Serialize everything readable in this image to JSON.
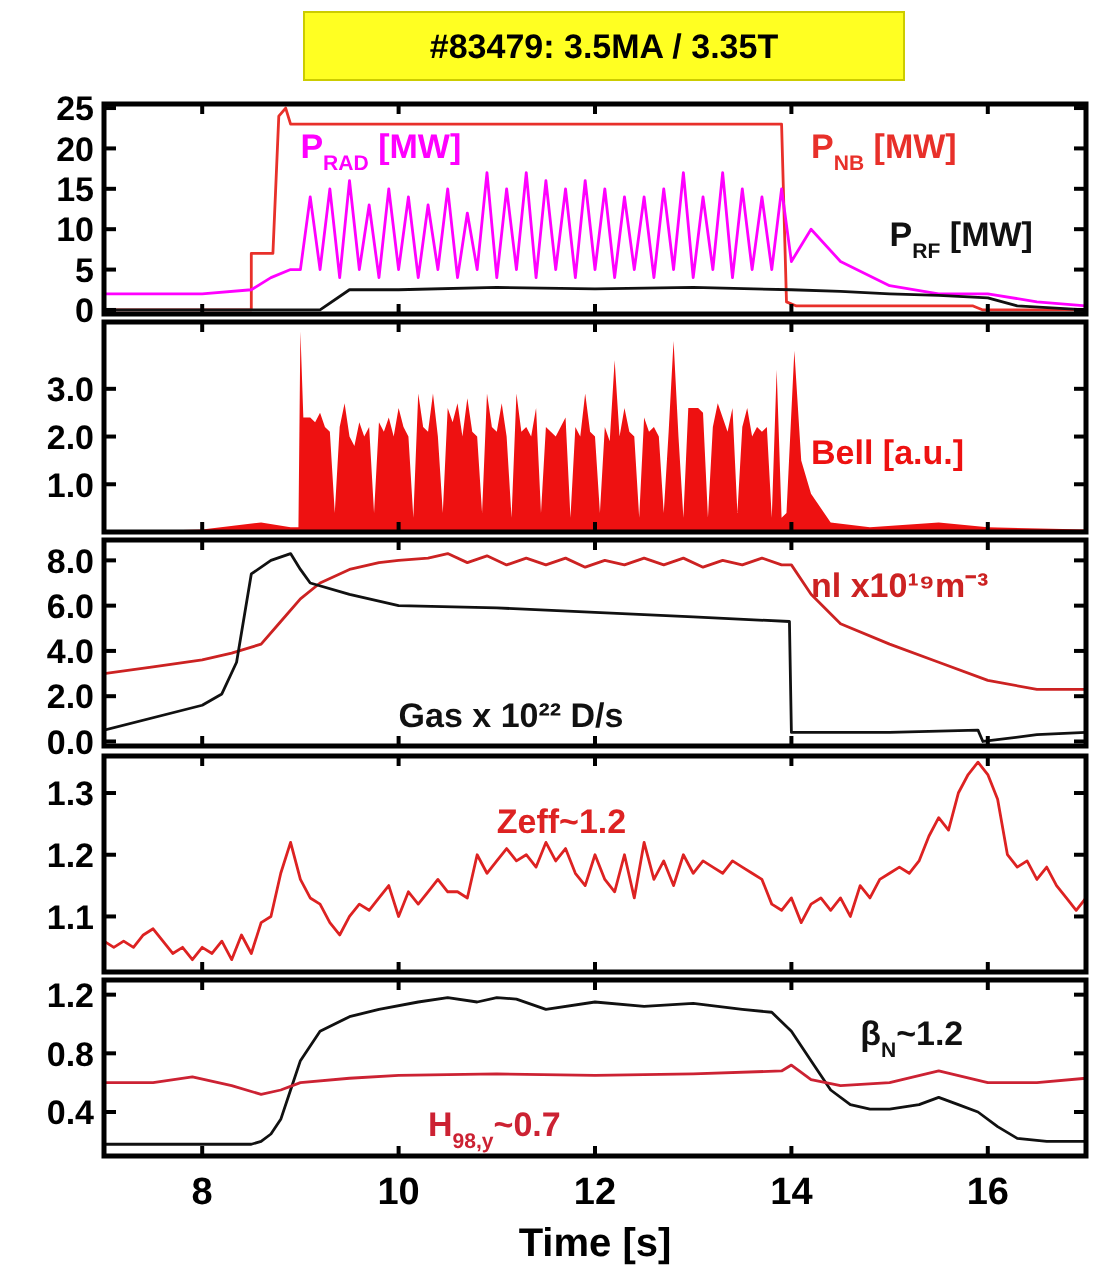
{
  "chart_data": [
    {
      "type": "line",
      "title": "#83479: 3.5MA / 3.35T",
      "xlim": [
        7,
        17
      ],
      "xticks": [
        8,
        10,
        12,
        14,
        16
      ],
      "ylim": [
        -0.5,
        25.5
      ],
      "yticks": [
        0,
        5,
        10,
        15,
        20,
        25
      ],
      "tick_labels": "y",
      "series": [
        {
          "name": "P$_{NB}$ [MW]",
          "color": "#e8302a",
          "x": [
            7,
            8.5,
            8.5,
            8.72,
            8.78,
            8.85,
            8.9,
            13.9,
            13.95,
            14.05,
            15.85,
            15.95,
            17
          ],
          "values": [
            0,
            0,
            7,
            7,
            24,
            25,
            23,
            23,
            1,
            0.5,
            0.5,
            0,
            0
          ]
        },
        {
          "name": "P$_{RAD}$ [MW]",
          "color": "#ff00ff",
          "x": [
            7,
            7.5,
            8,
            8.5,
            8.7,
            8.9,
            9.0,
            9.1,
            9.2,
            9.3,
            9.4,
            9.5,
            9.6,
            9.7,
            9.8,
            9.9,
            10.0,
            10.1,
            10.2,
            10.3,
            10.4,
            10.5,
            10.6,
            10.7,
            10.8,
            10.9,
            11.0,
            11.1,
            11.2,
            11.3,
            11.4,
            11.5,
            11.6,
            11.7,
            11.8,
            11.9,
            12.0,
            12.1,
            12.2,
            12.3,
            12.4,
            12.5,
            12.6,
            12.7,
            12.8,
            12.9,
            13.0,
            13.1,
            13.2,
            13.3,
            13.4,
            13.5,
            13.6,
            13.7,
            13.8,
            13.9,
            14.0,
            14.2,
            14.5,
            15,
            15.5,
            16,
            16.5,
            17
          ],
          "values": [
            2,
            2,
            2,
            2.5,
            4,
            5,
            5,
            14,
            5,
            15,
            4,
            16,
            5,
            13,
            4,
            15,
            5,
            14,
            4,
            13,
            5,
            15,
            4,
            12,
            5,
            17,
            4,
            15,
            5,
            17,
            4,
            16,
            5,
            15,
            4,
            16,
            5,
            15,
            4,
            14,
            5,
            14,
            4,
            15,
            5,
            17,
            4,
            14,
            5,
            17,
            4,
            15,
            5,
            14,
            5,
            15,
            6,
            10,
            6,
            3,
            2,
            2,
            1,
            0.5
          ]
        },
        {
          "name": "P$_{RF}$ [MW]",
          "color": "#111111",
          "x": [
            7,
            9.2,
            9.5,
            10,
            11,
            12,
            13,
            14,
            14.5,
            15,
            15.5,
            16,
            16.3,
            17
          ],
          "values": [
            0,
            0,
            2.5,
            2.5,
            2.8,
            2.6,
            2.8,
            2.5,
            2.3,
            2,
            1.8,
            1.5,
            0.5,
            0
          ]
        }
      ]
    },
    {
      "type": "area",
      "xlim": [
        7,
        17
      ],
      "xticks": [
        8,
        10,
        12,
        14,
        16
      ],
      "ylim": [
        0,
        4.4
      ],
      "yticks": [
        {
          "value": 1,
          "label": "1.0"
        },
        {
          "value": 2,
          "label": "2.0"
        },
        {
          "value": 3,
          "label": "3.0"
        }
      ],
      "tick_labels": "y",
      "series": [
        {
          "name": "Bell [a.u.]",
          "color": "#ee1111",
          "x": [
            7,
            8,
            8.6,
            8.9,
            8.98,
            9.0,
            9.03,
            9.1,
            9.15,
            9.2,
            9.25,
            9.3,
            9.35,
            9.4,
            9.45,
            9.5,
            9.55,
            9.6,
            9.65,
            9.7,
            9.75,
            9.8,
            9.85,
            9.9,
            9.95,
            10.0,
            10.05,
            10.1,
            10.15,
            10.2,
            10.25,
            10.3,
            10.35,
            10.4,
            10.45,
            10.5,
            10.55,
            10.6,
            10.65,
            10.7,
            10.75,
            10.8,
            10.85,
            10.9,
            10.95,
            11.0,
            11.05,
            11.1,
            11.15,
            11.2,
            11.25,
            11.3,
            11.35,
            11.4,
            11.45,
            11.5,
            11.55,
            11.6,
            11.65,
            11.7,
            11.75,
            11.8,
            11.85,
            11.9,
            11.95,
            12.0,
            12.05,
            12.1,
            12.15,
            12.2,
            12.25,
            12.3,
            12.35,
            12.4,
            12.45,
            12.5,
            12.55,
            12.6,
            12.65,
            12.7,
            12.75,
            12.8,
            12.85,
            12.9,
            12.95,
            13.0,
            13.05,
            13.1,
            13.15,
            13.2,
            13.25,
            13.3,
            13.35,
            13.4,
            13.45,
            13.5,
            13.55,
            13.6,
            13.65,
            13.7,
            13.75,
            13.8,
            13.85,
            13.9,
            13.95,
            14.03,
            14.1,
            14.2,
            14.4,
            14.8,
            15.5,
            16,
            17
          ],
          "values": [
            0,
            0.05,
            0.2,
            0.1,
            0.1,
            4.2,
            2.4,
            2.4,
            2.3,
            2.5,
            2.2,
            2.1,
            0.4,
            2.2,
            2.7,
            2.0,
            1.8,
            2.3,
            2.0,
            2.2,
            0.4,
            2.3,
            2.1,
            2.4,
            2.0,
            2.6,
            2.2,
            2.0,
            0.3,
            2.9,
            2.2,
            2.1,
            2.9,
            2.0,
            0.4,
            2.6,
            2.3,
            2.7,
            2.0,
            2.8,
            2.1,
            2.0,
            0.4,
            2.9,
            2.2,
            2.1,
            2.7,
            2.0,
            0.3,
            2.9,
            2.1,
            2.2,
            2.0,
            2.6,
            0.4,
            2.2,
            2.1,
            2.0,
            2.2,
            2.4,
            0.3,
            2.2,
            2.0,
            2.9,
            2.1,
            2.0,
            0.4,
            2.2,
            1.9,
            3.6,
            2.0,
            2.6,
            2.1,
            2.0,
            0.3,
            2.4,
            2.1,
            2.2,
            2.0,
            0.4,
            2.1,
            4.0,
            2.0,
            0.3,
            2.6,
            2.6,
            2.6,
            2.5,
            0.3,
            2.2,
            2.7,
            2.4,
            2.1,
            2.6,
            0.4,
            2.2,
            2.6,
            2.0,
            2.2,
            2.1,
            2.2,
            0.3,
            3.4,
            0.3,
            0.4,
            3.8,
            1.5,
            0.8,
            0.2,
            0.1,
            0.2,
            0.1,
            0.05
          ]
        }
      ]
    },
    {
      "type": "line",
      "xlim": [
        7,
        17
      ],
      "xticks": [
        8,
        10,
        12,
        14,
        16
      ],
      "ylim": [
        -0.2,
        8.9
      ],
      "yticks": [
        {
          "value": 0,
          "label": "0.0"
        },
        {
          "value": 2,
          "label": "2.0"
        },
        {
          "value": 4,
          "label": "4.0"
        },
        {
          "value": 6,
          "label": "6.0"
        },
        {
          "value": 8,
          "label": "8.0"
        }
      ],
      "tick_labels": "y",
      "series": [
        {
          "name": "nl x10¹⁹m⁻³",
          "color": "#cc2222",
          "x": [
            7,
            7.5,
            8,
            8.3,
            8.6,
            8.8,
            9.0,
            9.2,
            9.5,
            9.8,
            10.0,
            10.3,
            10.5,
            10.7,
            10.9,
            11.1,
            11.3,
            11.5,
            11.7,
            11.9,
            12.1,
            12.3,
            12.5,
            12.7,
            12.9,
            13.1,
            13.3,
            13.5,
            13.7,
            13.9,
            14.0,
            14.2,
            14.5,
            15,
            15.5,
            16,
            16.5,
            17
          ],
          "values": [
            3.0,
            3.3,
            3.6,
            3.9,
            4.3,
            5.3,
            6.3,
            7.0,
            7.6,
            7.9,
            8.0,
            8.1,
            8.3,
            7.9,
            8.2,
            7.8,
            8.1,
            7.8,
            8.1,
            7.7,
            8.0,
            7.8,
            8.1,
            7.8,
            8.1,
            7.7,
            8.0,
            7.8,
            8.1,
            7.8,
            7.8,
            6.5,
            5.2,
            4.3,
            3.5,
            2.7,
            2.3,
            2.3
          ]
        },
        {
          "name": "Gas x 10²² D/s",
          "color": "#111111",
          "x": [
            7,
            8,
            8.2,
            8.35,
            8.5,
            8.7,
            8.9,
            9.0,
            9.1,
            9.5,
            10,
            11,
            12,
            13,
            13.98,
            14.0,
            15,
            15.9,
            15.95,
            16.5,
            17
          ],
          "values": [
            0.5,
            1.6,
            2.1,
            3.5,
            7.4,
            8.0,
            8.3,
            7.6,
            7.0,
            6.5,
            6.0,
            5.9,
            5.7,
            5.5,
            5.3,
            0.4,
            0.4,
            0.5,
            0,
            0.3,
            0.4
          ]
        }
      ]
    },
    {
      "type": "line",
      "xlim": [
        7,
        17
      ],
      "xticks": [
        8,
        10,
        12,
        14,
        16
      ],
      "ylim": [
        1.01,
        1.36
      ],
      "yticks": [
        1.1,
        1.2,
        1.3
      ],
      "tick_labels": "y",
      "series": [
        {
          "name": "Zeff~1.2",
          "color": "#dd2222",
          "x": [
            7.0,
            7.1,
            7.2,
            7.3,
            7.4,
            7.5,
            7.6,
            7.7,
            7.8,
            7.9,
            8.0,
            8.1,
            8.2,
            8.3,
            8.4,
            8.5,
            8.6,
            8.7,
            8.8,
            8.9,
            9.0,
            9.1,
            9.2,
            9.3,
            9.4,
            9.5,
            9.6,
            9.7,
            9.8,
            9.9,
            10.0,
            10.1,
            10.2,
            10.3,
            10.4,
            10.5,
            10.6,
            10.7,
            10.8,
            10.9,
            11.0,
            11.1,
            11.2,
            11.3,
            11.4,
            11.5,
            11.6,
            11.7,
            11.8,
            11.9,
            12.0,
            12.1,
            12.2,
            12.3,
            12.4,
            12.5,
            12.6,
            12.7,
            12.8,
            12.9,
            13.0,
            13.1,
            13.2,
            13.3,
            13.4,
            13.5,
            13.6,
            13.7,
            13.8,
            13.9,
            14.0,
            14.1,
            14.2,
            14.3,
            14.4,
            14.5,
            14.6,
            14.7,
            14.8,
            14.9,
            15.0,
            15.1,
            15.2,
            15.3,
            15.4,
            15.5,
            15.6,
            15.7,
            15.8,
            15.9,
            16.0,
            16.1,
            16.2,
            16.3,
            16.4,
            16.5,
            16.6,
            16.7,
            16.8,
            16.9,
            17.0
          ],
          "values": [
            1.06,
            1.05,
            1.06,
            1.05,
            1.07,
            1.08,
            1.06,
            1.04,
            1.05,
            1.03,
            1.05,
            1.04,
            1.06,
            1.03,
            1.07,
            1.04,
            1.09,
            1.1,
            1.17,
            1.22,
            1.16,
            1.13,
            1.12,
            1.09,
            1.07,
            1.1,
            1.12,
            1.11,
            1.13,
            1.15,
            1.1,
            1.14,
            1.12,
            1.14,
            1.16,
            1.14,
            1.14,
            1.13,
            1.2,
            1.17,
            1.19,
            1.21,
            1.19,
            1.2,
            1.18,
            1.22,
            1.19,
            1.21,
            1.17,
            1.15,
            1.2,
            1.16,
            1.14,
            1.2,
            1.13,
            1.22,
            1.16,
            1.19,
            1.15,
            1.2,
            1.17,
            1.19,
            1.18,
            1.17,
            1.19,
            1.18,
            1.17,
            1.16,
            1.12,
            1.11,
            1.13,
            1.09,
            1.12,
            1.13,
            1.11,
            1.13,
            1.1,
            1.15,
            1.13,
            1.16,
            1.17,
            1.18,
            1.17,
            1.19,
            1.23,
            1.26,
            1.24,
            1.3,
            1.33,
            1.35,
            1.33,
            1.29,
            1.2,
            1.18,
            1.19,
            1.16,
            1.18,
            1.15,
            1.13,
            1.11,
            1.13
          ]
        }
      ]
    },
    {
      "type": "line",
      "xlabel": "Time [s]",
      "xlim": [
        7,
        17
      ],
      "xticks": [
        8,
        10,
        12,
        14,
        16
      ],
      "ylim": [
        0.1,
        1.3
      ],
      "yticks": [
        0.4,
        0.8,
        1.2
      ],
      "series": [
        {
          "name": "β$_{N}$~1.2",
          "color": "#111111",
          "x": [
            7,
            8,
            8.5,
            8.6,
            8.7,
            8.8,
            8.9,
            9.0,
            9.2,
            9.5,
            9.8,
            10.2,
            10.5,
            10.8,
            11,
            11.2,
            11.5,
            12,
            12.5,
            13,
            13.5,
            13.8,
            14.0,
            14.2,
            14.4,
            14.6,
            14.8,
            15.0,
            15.3,
            15.5,
            15.7,
            15.9,
            16.1,
            16.3,
            16.6,
            17
          ],
          "values": [
            0.18,
            0.18,
            0.18,
            0.2,
            0.25,
            0.35,
            0.55,
            0.75,
            0.95,
            1.05,
            1.1,
            1.15,
            1.18,
            1.15,
            1.18,
            1.17,
            1.1,
            1.15,
            1.12,
            1.14,
            1.1,
            1.08,
            0.95,
            0.75,
            0.55,
            0.45,
            0.42,
            0.42,
            0.45,
            0.5,
            0.45,
            0.4,
            0.3,
            0.22,
            0.2,
            0.2
          ]
        },
        {
          "name": "H$_{98,y}$~0.7",
          "color": "#cc2233",
          "x": [
            7,
            7.5,
            7.9,
            8.3,
            8.6,
            8.8,
            9.0,
            9.5,
            10,
            11,
            12,
            13,
            13.9,
            14.0,
            14.2,
            14.5,
            15,
            15.5,
            16,
            16.5,
            17
          ],
          "values": [
            0.6,
            0.6,
            0.64,
            0.58,
            0.52,
            0.55,
            0.6,
            0.63,
            0.65,
            0.66,
            0.65,
            0.66,
            0.68,
            0.72,
            0.62,
            0.58,
            0.6,
            0.68,
            0.6,
            0.6,
            0.63
          ]
        }
      ]
    }
  ]
}
